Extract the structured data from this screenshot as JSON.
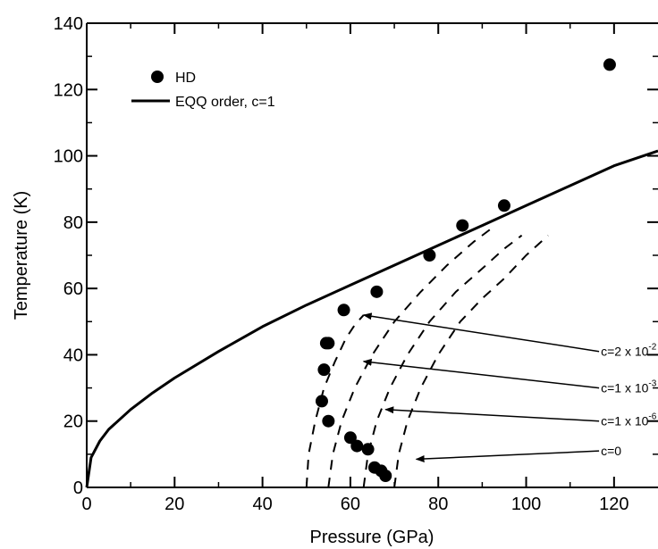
{
  "chart_data": {
    "type": "scatter",
    "title": "",
    "xlabel": "Pressure (GPa)",
    "ylabel": "Temperature (K)",
    "xlim": [
      0,
      130
    ],
    "ylim": [
      0,
      140
    ],
    "xticks": [
      0,
      20,
      40,
      60,
      80,
      100,
      120
    ],
    "yticks": [
      0,
      20,
      40,
      60,
      80,
      100,
      120,
      140
    ],
    "legend_position": "top-left",
    "series": [
      {
        "name": "HD",
        "kind": "scatter",
        "marker": "filled-circle",
        "x": [
          53.5,
          54,
          54.5,
          55,
          55,
          58.5,
          60,
          61.5,
          64,
          65.5,
          66,
          67,
          68,
          78,
          85.5,
          95,
          119
        ],
        "y": [
          26,
          35.5,
          43.5,
          43.5,
          20,
          53.5,
          15,
          12.5,
          11.5,
          6,
          59,
          5,
          3.5,
          70,
          79,
          85,
          127.5
        ]
      },
      {
        "name": "EQQ order, c=1",
        "kind": "line",
        "style": "solid",
        "x": [
          0,
          1,
          3,
          5,
          10,
          15,
          20,
          30,
          40,
          50,
          60,
          70,
          80,
          90,
          100,
          110,
          120,
          130
        ],
        "y": [
          0,
          9,
          14,
          17.5,
          23.5,
          28.5,
          33,
          41,
          48.5,
          55,
          61,
          67,
          73,
          79,
          85,
          91,
          97,
          101.5
        ]
      },
      {
        "kind": "line",
        "style": "dashed",
        "x": [
          50,
          50.5,
          52,
          54,
          56.5,
          59,
          61,
          63
        ],
        "y": [
          0,
          10,
          20,
          30,
          38,
          45,
          49,
          52
        ]
      },
      {
        "kind": "line",
        "style": "dashed",
        "x": [
          55,
          56,
          58,
          61,
          65,
          70,
          76,
          82,
          88,
          93
        ],
        "y": [
          0,
          10,
          20,
          30,
          40,
          50,
          59,
          67,
          74,
          79
        ]
      },
      {
        "kind": "line",
        "style": "dashed",
        "x": [
          63,
          64,
          66,
          69,
          73,
          78,
          84,
          90,
          95,
          99
        ],
        "y": [
          0,
          10,
          20,
          30,
          40,
          50,
          59,
          66,
          72,
          76
        ]
      },
      {
        "kind": "line",
        "style": "dashed",
        "x": [
          70,
          71,
          73,
          76,
          80,
          85,
          90,
          95,
          100,
          105
        ],
        "y": [
          0,
          10,
          20,
          30,
          40,
          50,
          57,
          63,
          70,
          76
        ]
      }
    ],
    "annotations": [
      {
        "base": "c=2 x 10",
        "exp": "-2",
        "text_at": [
          117,
          41
        ],
        "arrow_to": [
          63,
          52
        ]
      },
      {
        "base": "c=1 x 10",
        "exp": "-3",
        "text_at": [
          117,
          30
        ],
        "arrow_to": [
          63,
          38
        ]
      },
      {
        "base": "c=1 x 10",
        "exp": "-6",
        "text_at": [
          117,
          20
        ],
        "arrow_to": [
          68,
          23.5
        ]
      },
      {
        "base": "c=0",
        "exp": "",
        "text_at": [
          117,
          11
        ],
        "arrow_to": [
          75,
          8.5
        ]
      }
    ]
  }
}
